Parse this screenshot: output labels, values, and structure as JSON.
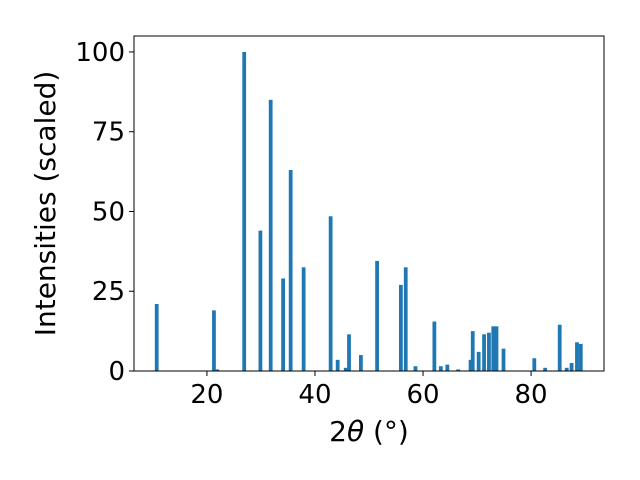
{
  "chart_data": {
    "type": "bar",
    "xlabel_main": "2",
    "xlabel_theta": "θ",
    "xlabel_unit": " (°)",
    "ylabel": "Intensities (scaled)",
    "xlim": [
      6.5,
      93.5
    ],
    "ylim": [
      0,
      105
    ],
    "grid": false,
    "x_ticks": [
      {
        "value": 20,
        "label": "20"
      },
      {
        "value": 40,
        "label": "40"
      },
      {
        "value": 60,
        "label": "60"
      },
      {
        "value": 80,
        "label": "80"
      }
    ],
    "y_ticks": [
      {
        "value": 0,
        "label": "0"
      },
      {
        "value": 25,
        "label": "25"
      },
      {
        "value": 50,
        "label": "50"
      },
      {
        "value": 75,
        "label": "75"
      },
      {
        "value": 100,
        "label": "100"
      }
    ],
    "bar_width": 0.7,
    "bar_color": "#1f77b4",
    "series": [
      {
        "x": [
          10.7,
          21.3,
          21.9,
          26.9,
          29.9,
          31.8,
          34.1,
          35.5,
          37.9,
          42.9,
          44.2,
          45.7,
          46.3,
          48.5,
          51.5,
          55.9,
          56.8,
          58.6,
          62.1,
          63.3,
          64.5,
          66.5,
          68.8,
          69.2,
          70.3,
          71.3,
          72.2,
          73.0,
          73.6,
          74.9,
          80.6,
          82.6,
          85.3,
          86.6,
          87.5,
          88.5,
          89.2
        ],
        "values": [
          21,
          19,
          0.5,
          100,
          44,
          85,
          29,
          63,
          32.5,
          48.5,
          3.5,
          1.0,
          11.5,
          5.0,
          34.5,
          27,
          32.5,
          1.5,
          15.5,
          1.5,
          2.0,
          0.5,
          3.5,
          12.5,
          6.0,
          11.5,
          12.0,
          14.0,
          14.0,
          7.0,
          4.0,
          1.0,
          14.5,
          1.0,
          2.5,
          9.0,
          8.5
        ]
      }
    ]
  }
}
